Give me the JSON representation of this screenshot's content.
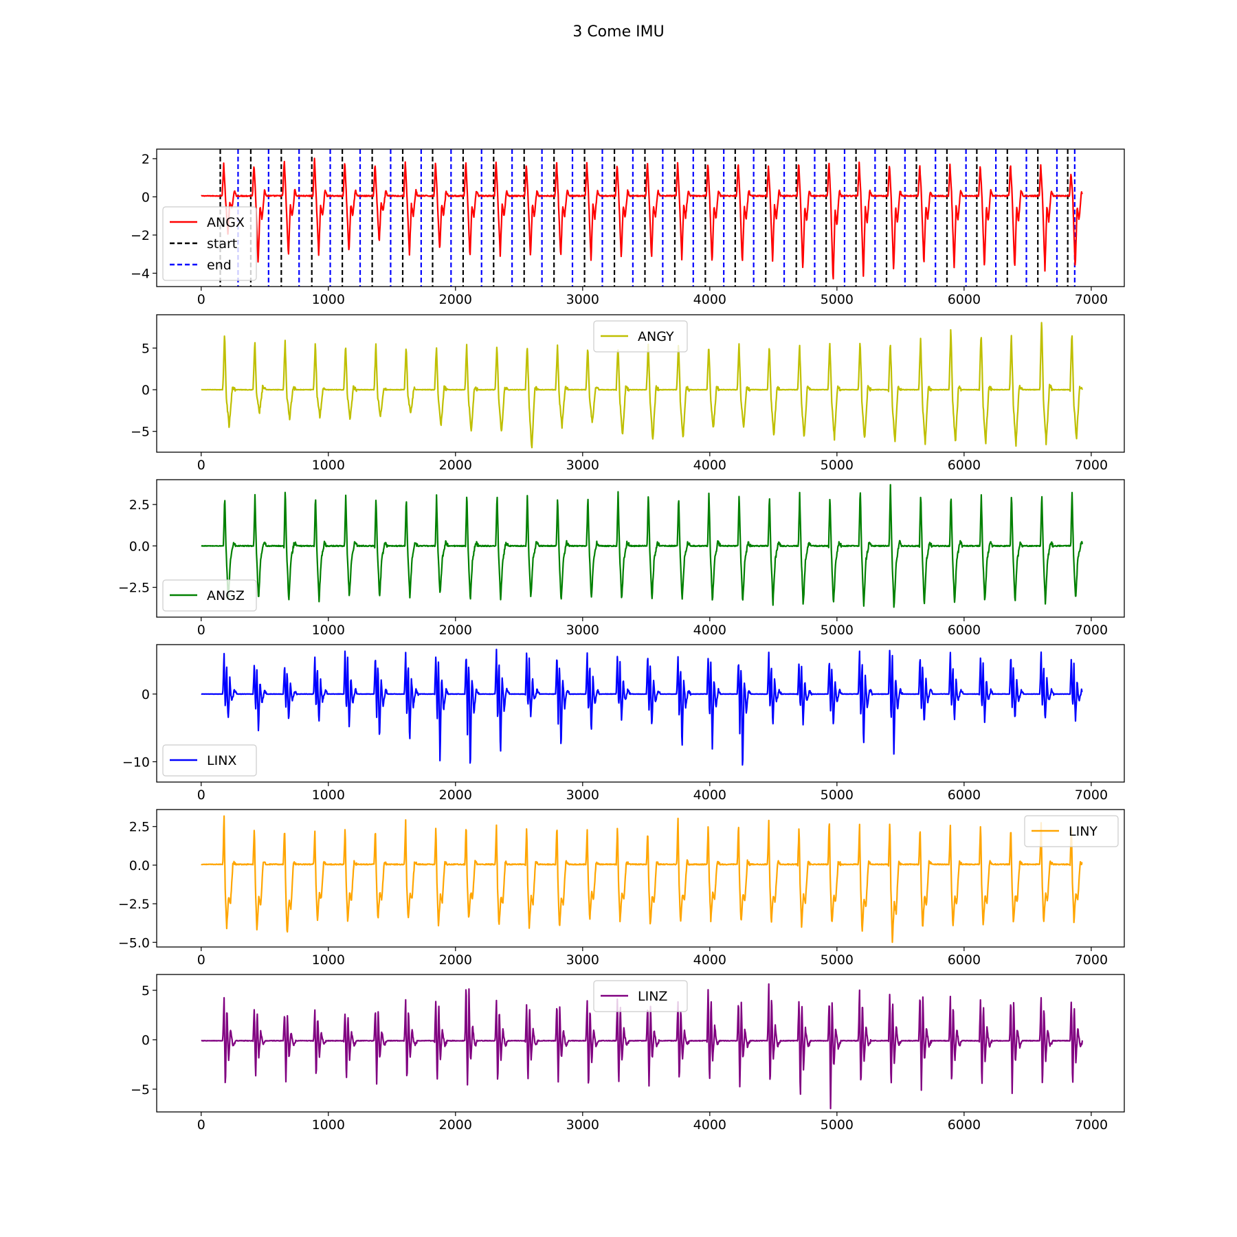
{
  "figure": {
    "title": "3 Come IMU"
  },
  "chart_data": [
    {
      "type": "line",
      "xlim": [
        -350,
        7260
      ],
      "ylim": [
        -4.7,
        2.5
      ],
      "xticks": [
        0,
        1000,
        2000,
        3000,
        4000,
        5000,
        6000,
        7000
      ],
      "yticks": [
        -4,
        -2,
        0,
        2
      ],
      "ytick_labels": [
        "−4",
        "−2",
        "0",
        "2"
      ],
      "legend": {
        "loc": "lower-left",
        "entries": [
          {
            "label": "ANGX",
            "color": "#ff0000",
            "style": "solid"
          },
          {
            "label": "start",
            "color": "#000000",
            "style": "dashed"
          },
          {
            "label": "end",
            "color": "#0000ff",
            "style": "dashed"
          }
        ]
      },
      "series": [
        {
          "name": "ANGX",
          "color": "#ff0000",
          "x_range": [
            0,
            6930
          ],
          "cycle_start": 165,
          "cycle_period": 238,
          "baseline": 0.05,
          "shape_x": [
            0,
            12,
            24,
            45,
            60,
            75,
            95,
            110
          ],
          "shape_y": [
            0,
            1.8,
            0.2,
            -3.5,
            -0.5,
            -1.2,
            0.3,
            0
          ],
          "peaks": [
            1.7,
            1.7,
            1.9,
            1.9,
            1.8,
            1.7,
            1.8,
            1.8,
            1.8,
            1.8,
            1.7,
            1.8,
            1.7,
            1.7,
            1.8,
            1.7,
            1.8,
            1.8,
            1.6,
            1.8,
            1.8,
            1.7,
            1.7,
            1.7,
            1.6,
            1.6,
            1.7,
            1.6,
            1.2,
            1.3
          ],
          "troughs": [
            -2.0,
            -3.6,
            -3.2,
            -3.1,
            -3.0,
            -2.5,
            -3.1,
            -2.9,
            -3.3,
            -3.1,
            -3.2,
            -3.3,
            -3.4,
            -3.3,
            -3.3,
            -3.3,
            -3.6,
            -3.6,
            -3.4,
            -3.9,
            -4.6,
            -4.2,
            -4.0,
            -3.6,
            -3.8,
            -3.8,
            -3.9,
            -3.9,
            -3.8,
            -3.9
          ]
        }
      ],
      "vlines": {
        "start": [
          150,
          390,
          630,
          870,
          1110,
          1345,
          1585,
          1820,
          2060,
          2300,
          2540,
          2775,
          3015,
          3250,
          3490,
          3725,
          3965,
          4200,
          4440,
          4680,
          4915,
          5150,
          5390,
          5625,
          5865,
          6100,
          6340,
          6580,
          6815
        ],
        "end": [
          290,
          530,
          770,
          1015,
          1250,
          1490,
          1730,
          1965,
          2205,
          2445,
          2680,
          2920,
          3155,
          3395,
          3630,
          3870,
          4110,
          4345,
          4585,
          4825,
          5060,
          5300,
          5535,
          5775,
          6015,
          6250,
          6490,
          6730,
          6870
        ]
      }
    },
    {
      "type": "line",
      "xlim": [
        -350,
        7260
      ],
      "ylim": [
        -7.5,
        9.0
      ],
      "xticks": [
        0,
        1000,
        2000,
        3000,
        4000,
        5000,
        6000,
        7000
      ],
      "yticks": [
        -5,
        0,
        5
      ],
      "ytick_labels": [
        "−5",
        "0",
        "5"
      ],
      "legend": {
        "loc": "upper-center",
        "entries": [
          {
            "label": "ANGY",
            "color": "#bfbf00",
            "style": "solid"
          }
        ]
      },
      "series": [
        {
          "name": "ANGY",
          "color": "#bfbf00",
          "x_range": [
            0,
            6930
          ],
          "cycle_start": 170,
          "cycle_period": 238,
          "baseline": 0,
          "shape_x": [
            0,
            14,
            28,
            50,
            75,
            100
          ],
          "shape_y": [
            0,
            6,
            -1,
            -4.5,
            0.3,
            0
          ],
          "peaks": [
            6.8,
            6.0,
            6.0,
            5.7,
            5.6,
            5.5,
            5.4,
            5.3,
            5.4,
            5.5,
            5.6,
            5.4,
            5.3,
            5.4,
            5.6,
            5.6,
            5.5,
            5.6,
            5.5,
            5.6,
            5.7,
            6.0,
            5.9,
            6.1,
            7.5,
            7.1,
            6.5,
            8.8,
            6.9,
            6.7
          ],
          "troughs": [
            -4.5,
            -2.8,
            -3.5,
            -3.3,
            -3.6,
            -3.3,
            -3.0,
            -4.3,
            -5.0,
            -5.3,
            -7.2,
            -4.4,
            -4.1,
            -5.4,
            -6.1,
            -5.9,
            -4.8,
            -4.6,
            -5.5,
            -5.9,
            -5.9,
            -6.1,
            -6.4,
            -6.6,
            -6.5,
            -6.5,
            -6.6,
            -6.5,
            -6.0,
            -5.7
          ]
        }
      ]
    },
    {
      "type": "line",
      "xlim": [
        -350,
        7260
      ],
      "ylim": [
        -4.3,
        4.0
      ],
      "xticks": [
        0,
        1000,
        2000,
        3000,
        4000,
        5000,
        6000,
        7000
      ],
      "yticks": [
        -2.5,
        0.0,
        2.5
      ],
      "ytick_labels": [
        "−2.5",
        "0.0",
        "2.5"
      ],
      "legend": {
        "loc": "lower-left",
        "entries": [
          {
            "label": "ANGZ",
            "color": "#008000",
            "style": "solid"
          }
        ]
      },
      "series": [
        {
          "name": "ANGZ",
          "color": "#008000",
          "x_range": [
            0,
            6930
          ],
          "cycle_start": 175,
          "cycle_period": 238,
          "baseline": 0,
          "shape_x": [
            0,
            10,
            22,
            38,
            55,
            80,
            100
          ],
          "shape_y": [
            0,
            2.8,
            -0.5,
            -3.2,
            -0.8,
            0.2,
            0
          ],
          "peaks": [
            3.0,
            3.0,
            3.5,
            3.0,
            3.0,
            3.0,
            3.0,
            3.0,
            3.2,
            3.3,
            3.0,
            3.0,
            3.1,
            3.3,
            3.3,
            3.1,
            3.2,
            3.2,
            3.1,
            3.2,
            3.1,
            3.6,
            3.8,
            3.2,
            3.2,
            3.1,
            3.2,
            3.3,
            3.3,
            2.9
          ],
          "troughs": [
            -3.3,
            -3.3,
            -3.3,
            -3.3,
            -3.2,
            -3.2,
            -3.1,
            -3.0,
            -3.3,
            -3.3,
            -3.2,
            -3.4,
            -3.2,
            -3.3,
            -3.3,
            -3.3,
            -3.4,
            -3.5,
            -3.5,
            -3.6,
            -3.6,
            -3.6,
            -3.8,
            -3.6,
            -3.5,
            -3.5,
            -3.4,
            -3.4,
            -3.3,
            -3.5
          ]
        }
      ]
    },
    {
      "type": "line",
      "xlim": [
        -350,
        7260
      ],
      "ylim": [
        -13,
        7.3
      ],
      "xticks": [
        0,
        1000,
        2000,
        3000,
        4000,
        5000,
        6000,
        7000
      ],
      "yticks": [
        -10,
        0
      ],
      "ytick_labels": [
        "−10",
        "0"
      ],
      "legend": {
        "loc": "lower-left",
        "entries": [
          {
            "label": "LINX",
            "color": "#0000ff",
            "style": "solid"
          }
        ]
      },
      "series": [
        {
          "name": "LINX",
          "color": "#0000ff",
          "x_range": [
            0,
            6930
          ],
          "cycle_start": 170,
          "cycle_period": 238,
          "baseline": 0,
          "shape_x": [
            0,
            10,
            20,
            30,
            42,
            55,
            70,
            90,
            110
          ],
          "shape_y": [
            0,
            5,
            -3,
            4,
            -6,
            2,
            -1.5,
            0.5,
            0
          ],
          "peaks": [
            6.0,
            4.5,
            4.5,
            5.5,
            7.0,
            6.0,
            6.0,
            6.0,
            6.0,
            6.5,
            6.5,
            6.0,
            6.0,
            6.0,
            6.0,
            5.5,
            6.0,
            5.0,
            6.0,
            5.0,
            5.5,
            6.5,
            7.0,
            6.0,
            6.0,
            6.0,
            6.0,
            6.0,
            5.5,
            5.5
          ],
          "troughs": [
            -4.0,
            -5.5,
            -4.0,
            -4.5,
            -5.0,
            -7.0,
            -7.5,
            -10.0,
            -12.0,
            -9.5,
            -3.5,
            -8.5,
            -6.0,
            -4.0,
            -5.0,
            -8.5,
            -8.0,
            -12.0,
            -5.0,
            -4.5,
            -5.0,
            -8.0,
            -9.0,
            -4.5,
            -4.0,
            -4.0,
            -4.0,
            -4.0,
            -4.0,
            -6.5
          ]
        }
      ]
    },
    {
      "type": "line",
      "xlim": [
        -350,
        7260
      ],
      "ylim": [
        -5.3,
        3.6
      ],
      "xticks": [
        0,
        1000,
        2000,
        3000,
        4000,
        5000,
        6000,
        7000
      ],
      "yticks": [
        -5.0,
        -2.5,
        0.0,
        2.5
      ],
      "ytick_labels": [
        "−5.0",
        "−2.5",
        "0.0",
        "2.5"
      ],
      "legend": {
        "loc": "upper-right",
        "entries": [
          {
            "label": "LINY",
            "color": "#ffa500",
            "style": "solid"
          }
        ]
      },
      "series": [
        {
          "name": "LINY",
          "color": "#ffa500",
          "x_range": [
            0,
            6930
          ],
          "cycle_start": 170,
          "cycle_period": 238,
          "baseline": 0.05,
          "shape_x": [
            0,
            10,
            18,
            30,
            45,
            60,
            80,
            100
          ],
          "shape_y": [
            0,
            3,
            -1.2,
            -4,
            -2,
            -2.5,
            0.2,
            0
          ],
          "peaks": [
            3.2,
            2.5,
            2.5,
            2.2,
            2.5,
            2.5,
            2.8,
            2.5,
            2.7,
            2.5,
            2.5,
            2.7,
            2.3,
            2.5,
            2.3,
            3.0,
            2.8,
            2.8,
            2.8,
            2.5,
            3.2,
            2.5,
            2.8,
            2.5,
            2.5,
            2.7,
            2.5,
            2.7,
            2.5,
            2.0
          ],
          "troughs": [
            -4.2,
            -4.3,
            -4.6,
            -3.7,
            -3.7,
            -3.6,
            -3.6,
            -4.0,
            -3.6,
            -4.1,
            -4.1,
            -4.2,
            -3.6,
            -3.7,
            -4.0,
            -3.8,
            -3.6,
            -3.8,
            -3.9,
            -4.0,
            -4.0,
            -4.4,
            -5.0,
            -4.2,
            -4.1,
            -4.0,
            -3.9,
            -3.8,
            -3.7,
            -3.5
          ]
        }
      ]
    },
    {
      "type": "line",
      "xlim": [
        -350,
        7260
      ],
      "ylim": [
        -7.3,
        6.6
      ],
      "xticks": [
        0,
        1000,
        2000,
        3000,
        4000,
        5000,
        6000,
        7000
      ],
      "yticks": [
        -5,
        0,
        5
      ],
      "ytick_labels": [
        "−5",
        "0",
        "5"
      ],
      "legend": {
        "loc": "upper-center",
        "entries": [
          {
            "label": "LINZ",
            "color": "#800080",
            "style": "solid"
          }
        ]
      },
      "series": [
        {
          "name": "LINZ",
          "color": "#800080",
          "x_range": [
            0,
            6930
          ],
          "cycle_start": 170,
          "cycle_period": 238,
          "baseline": -0.1,
          "shape_x": [
            0,
            10,
            20,
            32,
            45,
            60,
            80,
            100
          ],
          "shape_y": [
            0,
            3.5,
            -4.5,
            3,
            -2,
            1,
            -0.5,
            0
          ],
          "peaks": [
            4.2,
            3.5,
            3.0,
            3.0,
            3.0,
            3.5,
            4.0,
            4.5,
            6.2,
            4.0,
            4.0,
            4.0,
            4.0,
            4.5,
            4.0,
            4.0,
            5.5,
            4.5,
            5.7,
            4.5,
            4.5,
            5.0,
            5.0,
            5.0,
            4.5,
            4.5,
            4.5,
            4.5,
            4.5,
            3.5
          ],
          "troughs": [
            -5.0,
            -4.0,
            -4.2,
            -4.0,
            -4.3,
            -4.3,
            -4.4,
            -4.3,
            -4.5,
            -4.6,
            -4.4,
            -4.3,
            -5.3,
            -4.6,
            -4.5,
            -4.5,
            -4.6,
            -4.6,
            -4.7,
            -6.3,
            -6.8,
            -5.0,
            -4.8,
            -5.0,
            -4.8,
            -5.0,
            -5.4,
            -5.0,
            -5.0,
            -4.8
          ]
        }
      ]
    }
  ]
}
